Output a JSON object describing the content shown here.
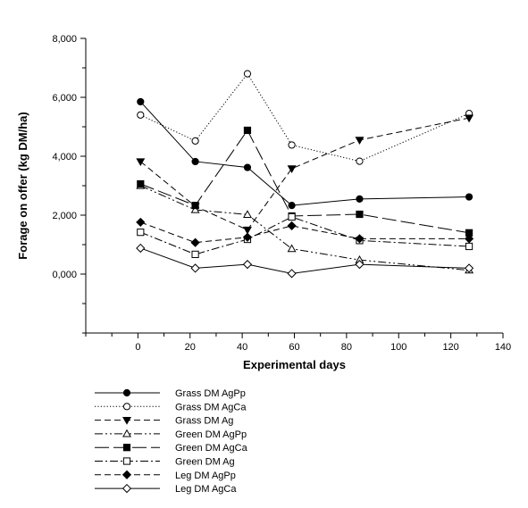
{
  "chart_data": {
    "type": "line",
    "xlabel": "Experimental days",
    "ylabel": "Forage on offer (kg DM/ha)",
    "xlim": [
      -20,
      140
    ],
    "ylim": [
      -2000,
      8000
    ],
    "x_ticks": [
      0,
      20,
      40,
      60,
      80,
      100,
      120,
      140
    ],
    "x_tick_labels": [
      "0",
      "20",
      "40",
      "60",
      "80",
      "100",
      "120",
      "140"
    ],
    "y_ticks": [
      0,
      2000,
      4000,
      6000,
      8000
    ],
    "y_tick_labels": [
      "0,000",
      "2,000",
      "4,000",
      "6,000",
      "8,000"
    ],
    "grid": false,
    "legend_position": "bottom-left",
    "x": [
      1,
      22,
      42,
      59,
      85,
      127
    ],
    "series": [
      {
        "name": "Grass DM AgPp",
        "marker": "circle",
        "filled": true,
        "dash": "solid",
        "values": [
          5850,
          3820,
          3620,
          2330,
          2550,
          2620
        ]
      },
      {
        "name": "Grass DM AgCa",
        "marker": "circle",
        "filled": false,
        "dash": "dotted",
        "values": [
          5400,
          4520,
          6800,
          4380,
          3830,
          5450
        ]
      },
      {
        "name": "Grass DM Ag",
        "marker": "triangle-down",
        "filled": true,
        "dash": "dashed",
        "values": [
          3820,
          2300,
          1500,
          3580,
          4550,
          5300
        ]
      },
      {
        "name": "Green DM AgPp",
        "marker": "triangle-up",
        "filled": false,
        "dash": "dash-dot-dot",
        "values": [
          3000,
          2180,
          2020,
          860,
          480,
          130
        ]
      },
      {
        "name": "Green DM AgCa",
        "marker": "square",
        "filled": true,
        "dash": "long-dash",
        "values": [
          3060,
          2330,
          4880,
          1970,
          2030,
          1400
        ]
      },
      {
        "name": "Green DM Ag",
        "marker": "square",
        "filled": false,
        "dash": "dash-dot",
        "values": [
          1420,
          670,
          1180,
          1940,
          1140,
          940
        ]
      },
      {
        "name": "Leg DM AgPp",
        "marker": "diamond",
        "filled": true,
        "dash": "dashed",
        "values": [
          1760,
          1070,
          1250,
          1640,
          1200,
          1200
        ]
      },
      {
        "name": "Leg DM AgCa",
        "marker": "diamond",
        "filled": false,
        "dash": "solid",
        "values": [
          880,
          200,
          330,
          20,
          330,
          200
        ]
      }
    ]
  }
}
